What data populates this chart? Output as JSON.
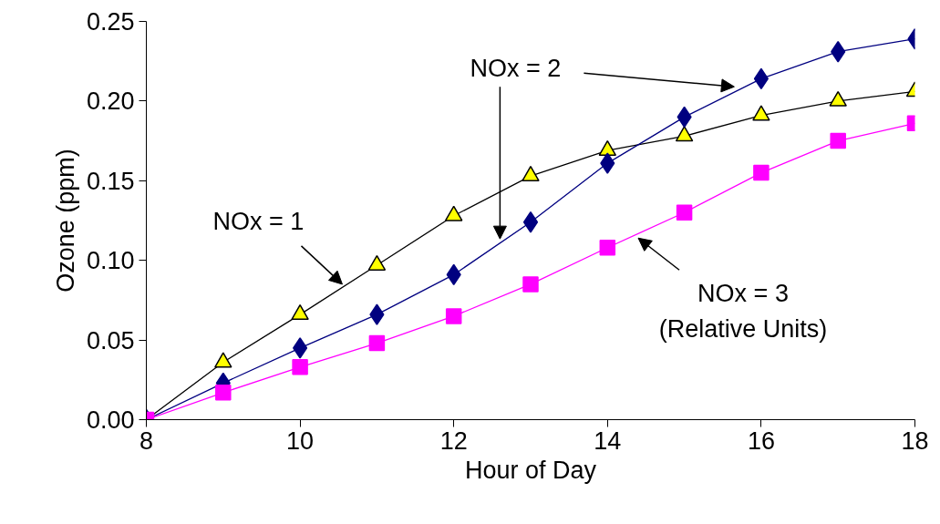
{
  "chart_data": {
    "type": "line",
    "xlabel": "Hour of Day",
    "ylabel": "Ozone (ppm)",
    "x": [
      8,
      9,
      10,
      11,
      12,
      13,
      14,
      15,
      16,
      17,
      18
    ],
    "series": [
      {
        "color": "#ffff00",
        "marker": "triangle",
        "values": [
          0,
          0.036,
          0.066,
          0.097,
          0.128,
          0.153,
          0.169,
          0.178,
          0.191,
          0.2,
          0.206
        ]
      },
      {
        "color": "#000080",
        "marker": "diamond",
        "values": [
          0,
          0.023,
          0.045,
          0.066,
          0.091,
          0.124,
          0.161,
          0.19,
          0.214,
          0.231,
          0.239
        ]
      },
      {
        "color": "#ff00ff",
        "marker": "square",
        "values": [
          0,
          0.017,
          0.033,
          0.048,
          0.065,
          0.085,
          0.108,
          0.13,
          0.155,
          0.175,
          0.186
        ]
      }
    ],
    "xlim": [
      8,
      18
    ],
    "xticks": [
      8,
      10,
      12,
      14,
      16,
      18
    ],
    "ylim": [
      0,
      0.25
    ],
    "yticks": [
      {
        "value": 0,
        "label": "0.00"
      },
      {
        "value": 0.05,
        "label": "0.05"
      },
      {
        "value": 0.1,
        "label": "0.10"
      },
      {
        "value": 0.15,
        "label": "0.15"
      },
      {
        "value": 0.2,
        "label": "0.20"
      },
      {
        "value": 0.25,
        "label": "0.25"
      }
    ],
    "grid": false,
    "line_style": "solid",
    "annotations": [
      {
        "text": "NOx = 1",
        "x": 10.55,
        "y": 0.085
      },
      {
        "text": "NOx = 2",
        "x": 15.65,
        "y": 0.209
      },
      {
        "text": "NOx = 3\n(Relative Units)",
        "x": 14.4,
        "y": 0.114
      }
    ]
  }
}
